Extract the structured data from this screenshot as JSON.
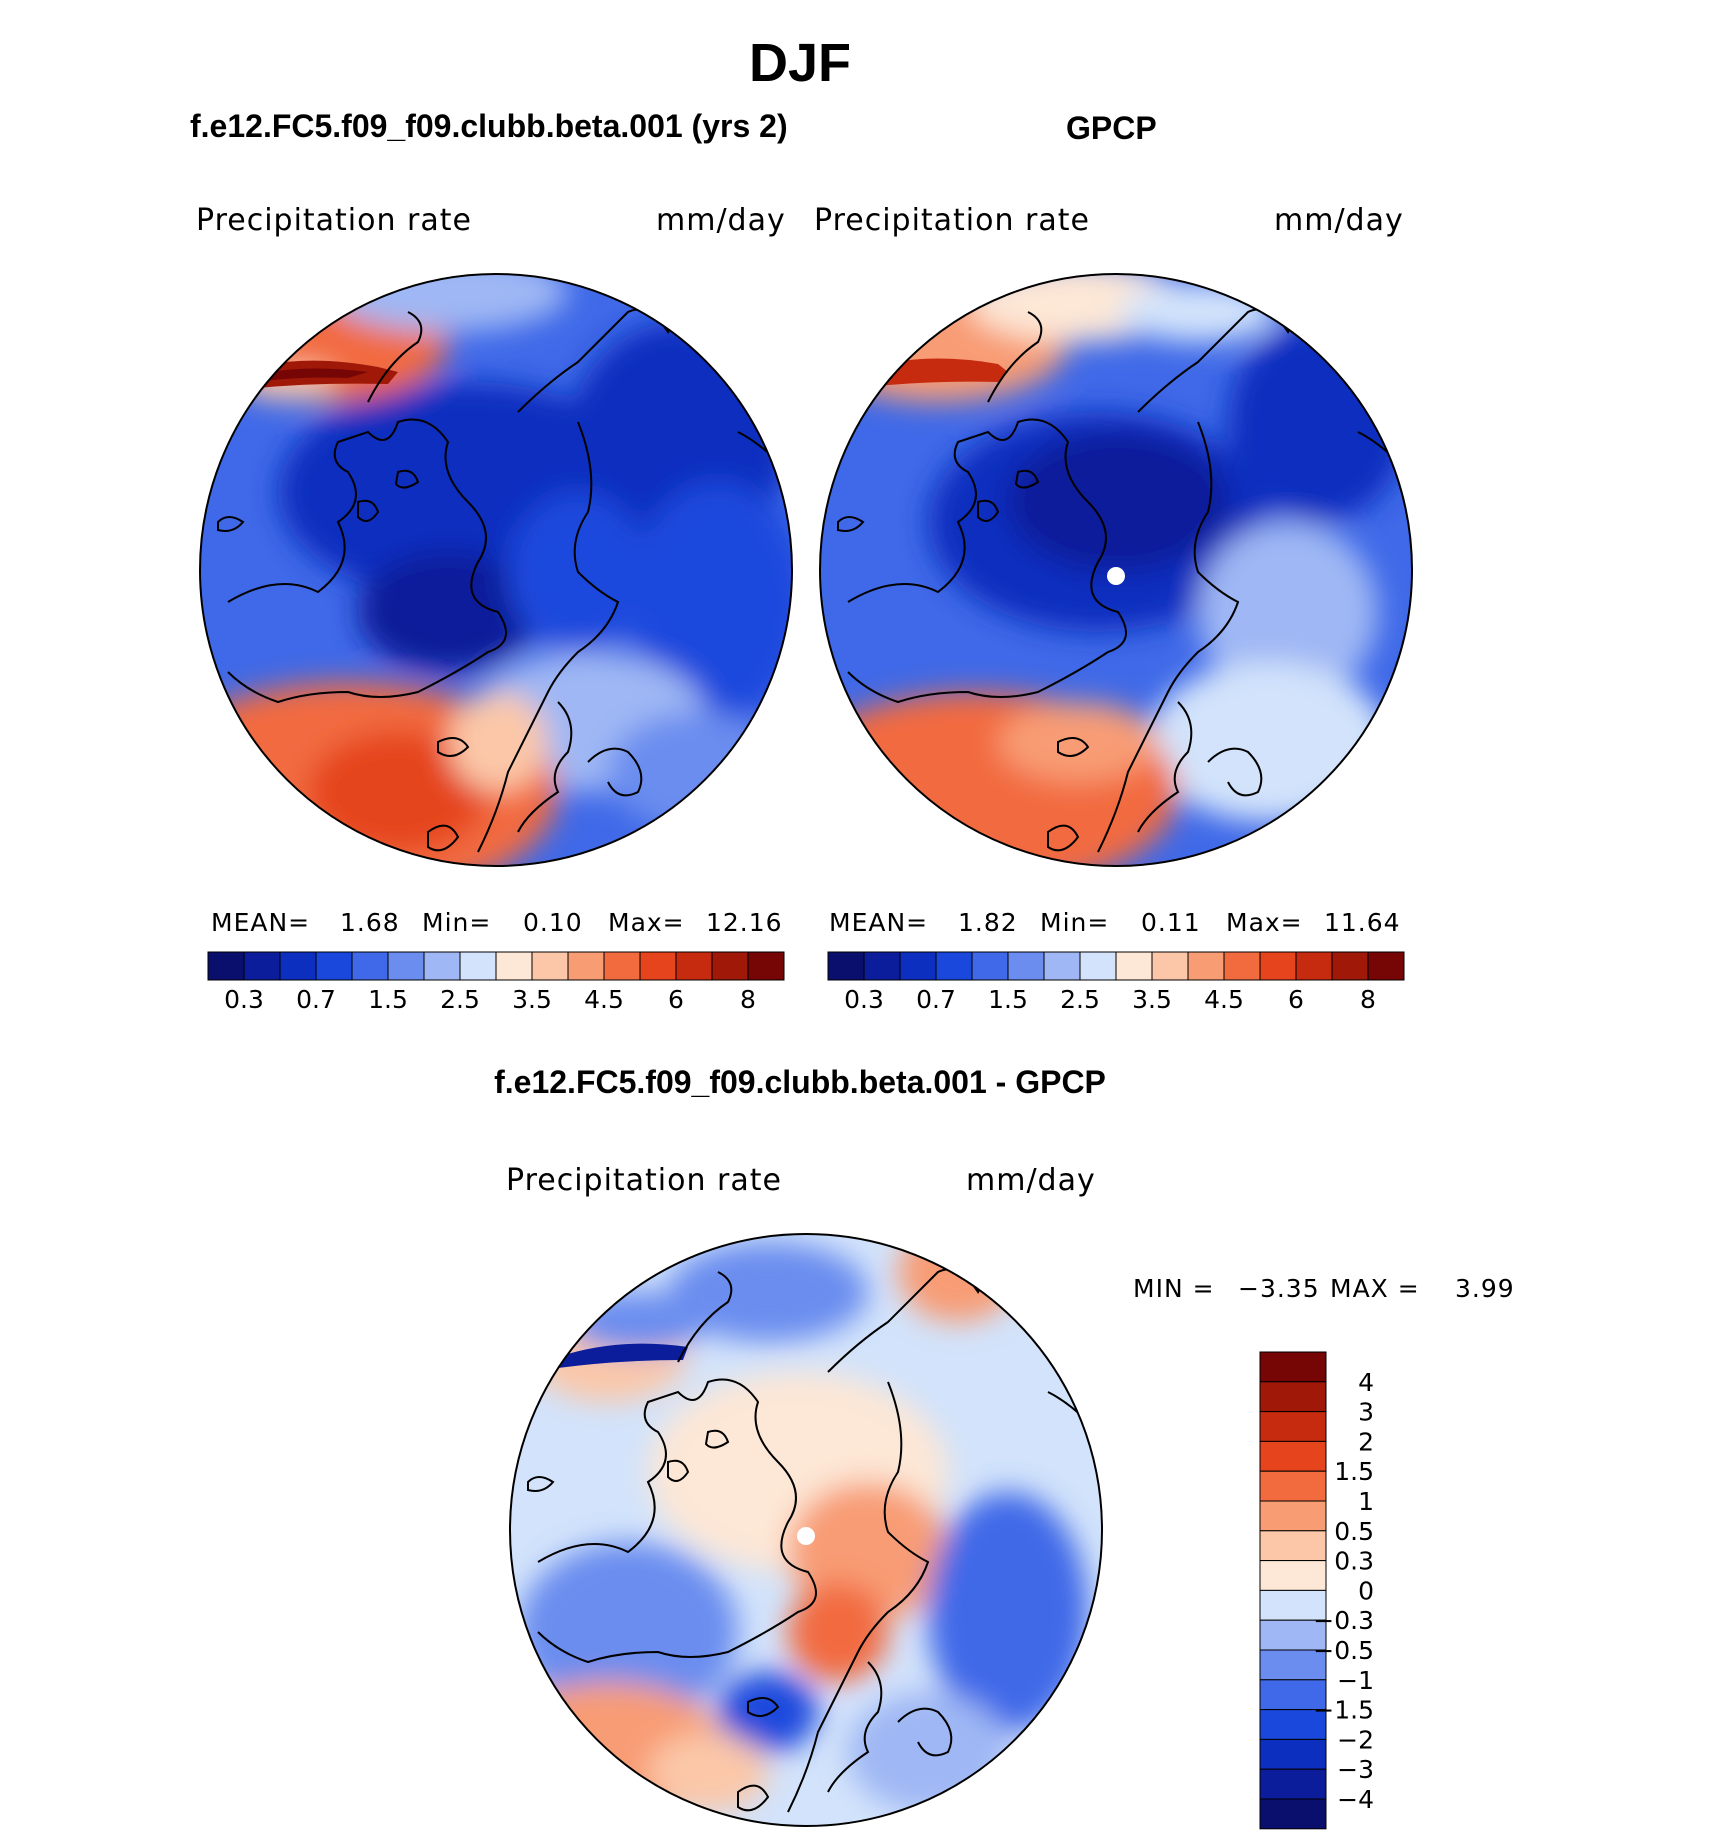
{
  "title": "DJF",
  "panels": [
    {
      "title": "f.e12.FC5.f09_f09.clubb.beta.001 (yrs 2)",
      "variable": "Precipitation  rate",
      "units": "mm/day",
      "stats": {
        "mean_label": "MEAN=",
        "mean": "1.68",
        "min_label": "Min=",
        "min": "0.10",
        "max_label": "Max=",
        "max": "12.16"
      }
    },
    {
      "title": "GPCP",
      "variable": "Precipitation  rate",
      "units": "mm/day",
      "stats": {
        "mean_label": "MEAN=",
        "mean": "1.82",
        "min_label": "Min=",
        "min": "0.11",
        "max_label": "Max=",
        "max": "11.64"
      }
    },
    {
      "title": "f.e12.FC5.f09_f09.clubb.beta.001 - GPCP",
      "variable": "Precipitation  rate",
      "units": "mm/day",
      "stats": {
        "min_label": "MIN =",
        "min": "−3.35",
        "max_label": "MAX =",
        "max": "3.99"
      }
    }
  ],
  "colorbar_abs": {
    "colors": [
      "#0a0f6e",
      "#0b1d9a",
      "#0c2fbf",
      "#1a48dd",
      "#3f69e8",
      "#6a8def",
      "#9fb7f4",
      "#d2e3fb",
      "#fde7d6",
      "#fbc7a8",
      "#f89c74",
      "#f26b3f",
      "#e5441c",
      "#c72b0f",
      "#a01808",
      "#760505"
    ],
    "tick_labels": [
      "0.3",
      "0.7",
      "1.5",
      "2.5",
      "3.5",
      "4.5",
      "6",
      "8"
    ]
  },
  "colorbar_diff": {
    "colors": [
      "#760505",
      "#a01808",
      "#c72b0f",
      "#e5441c",
      "#f26b3f",
      "#f89c74",
      "#fbc7a8",
      "#fde7d6",
      "#d2e3fb",
      "#9fb7f4",
      "#6a8def",
      "#3f69e8",
      "#1a48dd",
      "#0c2fbf",
      "#0b1d9a",
      "#0a0f6e"
    ],
    "tick_labels": [
      "4",
      "3",
      "2",
      "1.5",
      "1",
      "0.5",
      "0.3",
      "0",
      "−0.3",
      "−0.5",
      "−1",
      "−1.5",
      "−2",
      "−3",
      "−4"
    ]
  },
  "chart_data": [
    {
      "type": "heatmap",
      "title": "f.e12.FC5.f09_f09.clubb.beta.001 (yrs 2)",
      "subtitle": "Precipitation  rate",
      "units": "mm/day",
      "levels": [
        0.2,
        0.3,
        0.5,
        0.7,
        1,
        1.5,
        2,
        2.5,
        3,
        3.5,
        4,
        4.5,
        5,
        6,
        7,
        8,
        9
      ],
      "mean": 1.68,
      "min": 0.1,
      "max": 12.16
    },
    {
      "type": "heatmap",
      "title": "GPCP",
      "subtitle": "Precipitation  rate",
      "units": "mm/day",
      "levels": [
        0.2,
        0.3,
        0.5,
        0.7,
        1,
        1.5,
        2,
        2.5,
        3,
        3.5,
        4,
        4.5,
        5,
        6,
        7,
        8,
        9
      ],
      "mean": 1.82,
      "min": 0.11,
      "max": 11.64
    },
    {
      "type": "heatmap",
      "title": "f.e12.FC5.f09_f09.clubb.beta.001 - GPCP",
      "subtitle": "Precipitation  rate",
      "units": "mm/day",
      "levels": [
        -4,
        -3,
        -2,
        -1.5,
        -1,
        -0.5,
        -0.3,
        0,
        0.3,
        0.5,
        1,
        1.5,
        2,
        3,
        4
      ],
      "min": -3.35,
      "max": 3.99
    }
  ]
}
